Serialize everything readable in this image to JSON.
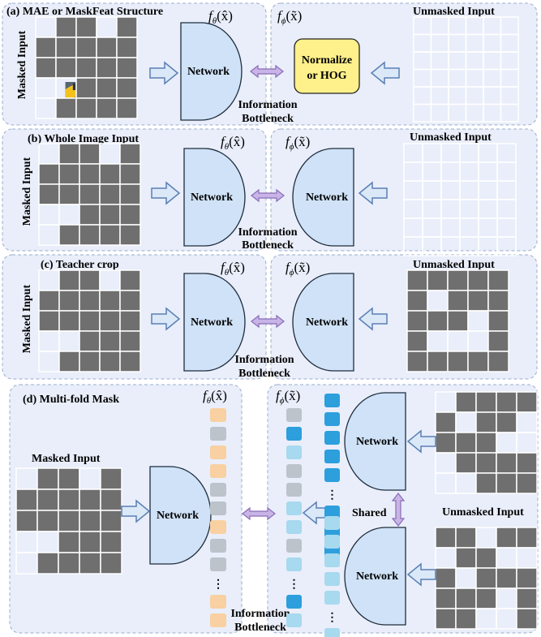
{
  "colors": {
    "panel_fill": "#e9eefa",
    "panel_stroke": "#9aaccc",
    "network_fill": "#cfe2f7",
    "arrow_fill": "#dbe8f7",
    "arrow_stroke": "#5a7fb5",
    "bottleneck_arrow": "#a58ac9",
    "normalize_fill": "#fef08a",
    "mask_gray": "#6f6f6f",
    "token_orange": "#f8d0a2",
    "token_gray": "#bcc3cb",
    "token_blue_dark": "#2c9fdc",
    "token_blue_light": "#a7d9ef"
  },
  "labels": {
    "masked_input": "Masked Input",
    "unmasked_input": "Unmasked Input",
    "network": "Network",
    "info_line1": "Information",
    "info_line2": "Bottleneck",
    "normalize_line1": "Normalize",
    "normalize_line2": "or HOG",
    "shared": "Shared",
    "dots": "⋮"
  },
  "panels": [
    {
      "title": "(a) MAE or MaskFeat Structure",
      "f_left": "f",
      "sub_left": "θ",
      "arg_left": "(x̂)",
      "f_right": "f",
      "sub_right": "ϕ",
      "arg_right": "(x̃)"
    },
    {
      "title": "(b) Whole Image Input",
      "f_left": "f",
      "sub_left": "θ",
      "arg_left": "(x̂)",
      "f_right": "f",
      "sub_right": "ϕ",
      "arg_right": "(x̃)"
    },
    {
      "title": "(c) Teacher crop",
      "f_left": "f",
      "sub_left": "θ",
      "arg_left": "(x̂)",
      "f_right": "f",
      "sub_right": "ϕ",
      "arg_right": "(x̃)"
    },
    {
      "title": "(d) Multi-fold Mask",
      "f_left": "f",
      "sub_left": "θ",
      "arg_left": "(x̂)",
      "f_right": "f",
      "sub_right": "ϕ",
      "arg_right": "(x̃)"
    }
  ]
}
